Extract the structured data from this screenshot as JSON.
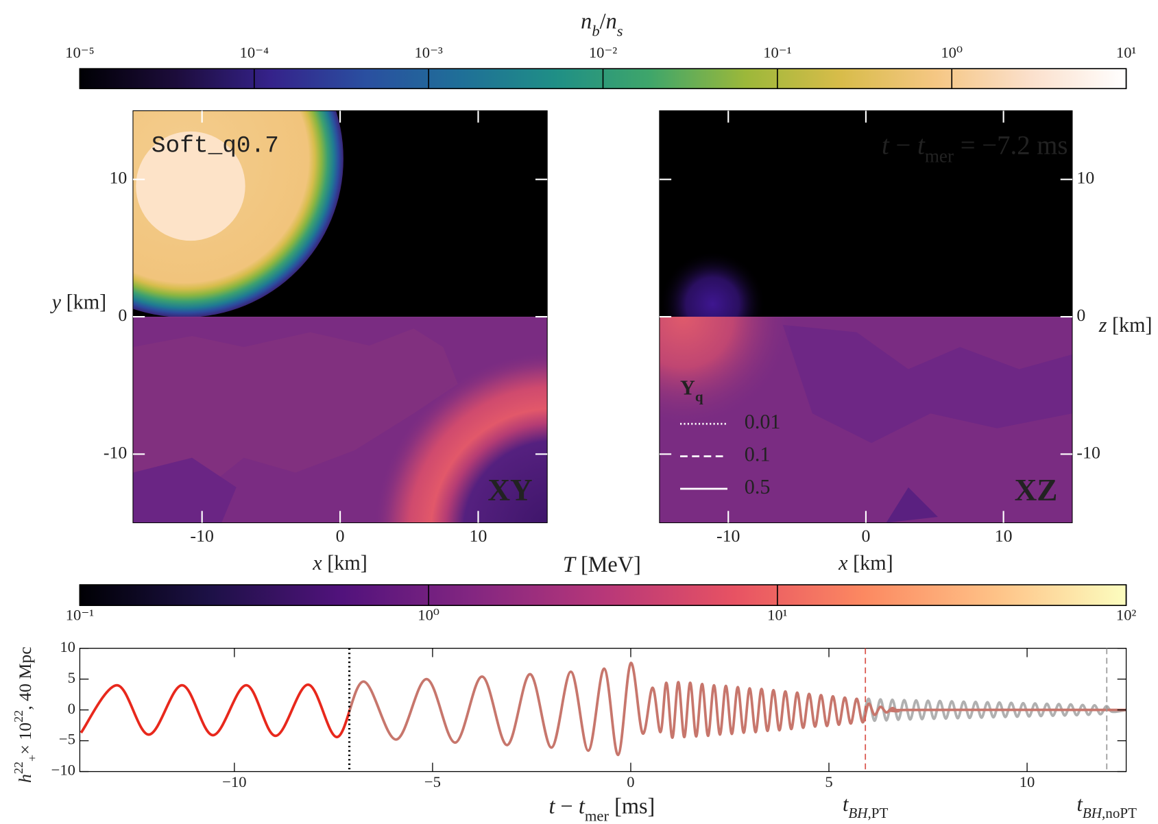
{
  "chart_data": [
    {
      "type": "colorbar",
      "title": [
        {
          "text": "n",
          "italic": true
        },
        {
          "text": "b",
          "italic": true,
          "sub": true
        },
        {
          "text": "/"
        },
        {
          "text": "n",
          "italic": true
        },
        {
          "text": "s",
          "italic": true,
          "sub": true
        }
      ],
      "scale": "log",
      "xlim": [
        1e-05,
        10
      ],
      "xticks": [
        {
          "value": 1e-05,
          "label": "10⁻⁵"
        },
        {
          "value": 0.0001,
          "label": "10⁻⁴"
        },
        {
          "value": 0.001,
          "label": "10⁻³"
        },
        {
          "value": 0.01,
          "label": "10⁻²"
        },
        {
          "value": 0.1,
          "label": "10⁻¹"
        },
        {
          "value": 1,
          "label": "10⁰"
        },
        {
          "value": 10,
          "label": "10¹"
        }
      ],
      "colors": [
        "#000004",
        "#1c0c3a",
        "#35228a",
        "#2a4fa0",
        "#1f6f98",
        "#1f8f86",
        "#3fa66a",
        "#9cb83a",
        "#d8bc4a",
        "#f5c784",
        "#fbe0cc",
        "#ffffff"
      ],
      "label_side": "top"
    },
    {
      "type": "heatmap",
      "label": "XY",
      "model": "Soft_q0.7",
      "xlabel": [
        {
          "text": "x",
          "italic": true
        },
        {
          "text": " [km]"
        }
      ],
      "ylabel": [
        {
          "text": "y",
          "italic": true
        },
        {
          "text": " [km]"
        }
      ],
      "xlim": [
        -15,
        15
      ],
      "ylim": [
        -15,
        15
      ],
      "xticks": [
        -10,
        0,
        10
      ],
      "yticks": [
        -10,
        0,
        10
      ],
      "ytick_side": "left"
    },
    {
      "type": "heatmap",
      "label": "XZ",
      "annotation": [
        {
          "text": "t",
          "italic": true
        },
        {
          "text": " − "
        },
        {
          "text": "t",
          "italic": true
        },
        {
          "text": "mer",
          "sub": true
        },
        {
          "text": " = −7.2 ms"
        }
      ],
      "xlabel": [
        {
          "text": "x",
          "italic": true
        },
        {
          "text": " [km]"
        }
      ],
      "ylabel": [
        {
          "text": "z",
          "italic": true
        },
        {
          "text": " [km]"
        }
      ],
      "xlim": [
        -15,
        15
      ],
      "ylim": [
        -15,
        15
      ],
      "xticks": [
        -10,
        0,
        10
      ],
      "yticks": [
        -10,
        0,
        10
      ],
      "ytick_side": "right",
      "legend": {
        "title": [
          {
            "text": "Y"
          },
          {
            "text": "q",
            "sub": true
          }
        ],
        "entries": [
          {
            "name": "0.01",
            "dash": "dotted"
          },
          {
            "name": "0.1",
            "dash": "dashed"
          },
          {
            "name": "0.5",
            "dash": "solid"
          }
        ]
      }
    },
    {
      "type": "colorbar",
      "title": [
        {
          "text": "T",
          "italic": true
        },
        {
          "text": " [MeV]"
        }
      ],
      "scale": "log",
      "xlim": [
        0.1,
        100
      ],
      "xticks": [
        {
          "value": 0.1,
          "label": "10⁻¹"
        },
        {
          "value": 1,
          "label": "10⁰"
        },
        {
          "value": 10,
          "label": "10¹"
        },
        {
          "value": 100,
          "label": "10²"
        }
      ],
      "colors": [
        "#000004",
        "#1d1147",
        "#51127c",
        "#832681",
        "#b73779",
        "#e75263",
        "#fc8961",
        "#fec287",
        "#fcfdbf"
      ],
      "label_side": "bottom"
    },
    {
      "type": "line",
      "xlabel": [
        {
          "text": "t",
          "italic": true
        },
        {
          "text": " − "
        },
        {
          "text": "t",
          "italic": true
        },
        {
          "text": "mer",
          "sub": true
        },
        {
          "text": " [ms]"
        }
      ],
      "ylabel": [
        {
          "text": "h",
          "italic": true
        },
        {
          "text": "22",
          "sup": true
        },
        {
          "text": "+",
          "sub": true
        },
        {
          "text": "× 10"
        },
        {
          "text": "22",
          "sup": true
        },
        {
          "text": ", 40 Mpc"
        }
      ],
      "xlim": [
        -13.9,
        12.5
      ],
      "ylim": [
        -10,
        10
      ],
      "xticks": [
        {
          "value": -10,
          "label": "−10"
        },
        {
          "value": -5,
          "label": "−5"
        },
        0,
        5,
        10
      ],
      "yticks": [
        {
          "value": -10,
          "label": "−10"
        },
        {
          "value": -5,
          "label": "−5"
        },
        0,
        5,
        10
      ],
      "markers": [
        {
          "x": -7.1,
          "color": "#000000",
          "dash": "dotted"
        },
        {
          "x": 5.92,
          "color": "#d9534a",
          "dash": "dashed",
          "label": [
            {
              "text": "t",
              "italic": true
            },
            {
              "text": "BH,",
              "italic": true,
              "sub": true
            },
            {
              "text": "PT",
              "sub": true
            }
          ]
        },
        {
          "x": 12.01,
          "color": "#9a9a9a",
          "dash": "dashed",
          "label": [
            {
              "text": "t",
              "italic": true
            },
            {
              "text": "BH,",
              "italic": true,
              "sub": true
            },
            {
              "text": "noPT",
              "sub": true
            }
          ]
        }
      ],
      "series": [
        {
          "color": "#b0b0b0",
          "x": [
            5.85,
            6.0,
            6.15,
            6.3,
            6.45,
            6.6,
            6.75,
            6.9,
            7.05,
            7.2,
            7.35,
            7.5,
            7.65,
            7.8,
            7.95,
            8.1,
            8.25,
            8.4,
            8.55,
            8.7,
            8.85,
            9.0,
            9.15,
            9.3,
            9.45,
            9.6,
            9.75,
            9.9,
            10.05,
            10.2,
            10.35,
            10.5,
            10.65,
            10.8,
            10.95,
            11.1,
            11.25,
            11.4,
            11.55,
            11.7,
            11.85,
            12.0,
            12.15,
            12.5
          ],
          "values": [
            -2.0,
            1.8,
            -1.75,
            1.7,
            -1.7,
            1.65,
            -1.6,
            1.6,
            -1.55,
            1.55,
            -1.5,
            1.5,
            -1.45,
            1.45,
            -1.4,
            1.4,
            -1.35,
            1.35,
            -1.3,
            1.3,
            -1.25,
            1.25,
            -1.2,
            1.2,
            -1.15,
            1.15,
            -1.1,
            1.1,
            -1.05,
            1.05,
            -1.0,
            1.0,
            -0.95,
            0.95,
            -0.9,
            0.9,
            -0.85,
            0.8,
            -0.8,
            0.75,
            -0.7,
            0.6,
            -0.3,
            0
          ]
        },
        {
          "color": "#e8281c",
          "faded_color": "#c7766c",
          "x": [
            -13.87,
            -12.96,
            -12.16,
            -11.32,
            -10.54,
            -9.7,
            -8.96,
            -8.14,
            -7.41,
            -6.74,
            -5.92,
            -5.15,
            -4.43,
            -3.75,
            -3.12,
            -2.54,
            -2.0,
            -1.51,
            -1.07,
            -0.67,
            -0.32,
            0.0,
            0.3,
            0.55,
            0.75,
            0.9,
            1.05,
            1.2,
            1.35,
            1.5,
            1.65,
            1.8,
            1.95,
            2.1,
            2.25,
            2.4,
            2.55,
            2.7,
            2.85,
            3.0,
            3.15,
            3.3,
            3.45,
            3.6,
            3.75,
            3.9,
            4.05,
            4.2,
            4.35,
            4.5,
            4.65,
            4.8,
            4.95,
            5.1,
            5.25,
            5.4,
            5.55,
            5.7,
            5.85,
            6.0,
            6.15,
            6.3,
            6.45,
            6.6,
            6.75,
            7.0,
            12.5
          ],
          "values": [
            -3.7,
            4.0,
            -4.0,
            4.0,
            -4.1,
            4.0,
            -4.2,
            4.1,
            -4.4,
            4.6,
            -4.8,
            5.0,
            -5.3,
            5.4,
            -5.7,
            5.8,
            -6.1,
            6.2,
            -6.6,
            6.7,
            -7.3,
            7.6,
            -3.8,
            3.6,
            -3.6,
            4.4,
            -4.5,
            4.5,
            -4.4,
            4.4,
            -4.3,
            4.2,
            -4.2,
            4.0,
            -4.0,
            3.9,
            -3.9,
            3.7,
            -3.7,
            3.5,
            -3.6,
            3.4,
            -3.4,
            3.2,
            -3.3,
            3.0,
            -3.1,
            2.8,
            -2.9,
            2.6,
            -2.7,
            2.4,
            -2.6,
            2.2,
            -2.4,
            2.0,
            -2.2,
            1.8,
            -2.0,
            1.0,
            -0.8,
            0.5,
            -0.4,
            0.3,
            -0.2,
            0,
            0
          ]
        }
      ]
    }
  ]
}
